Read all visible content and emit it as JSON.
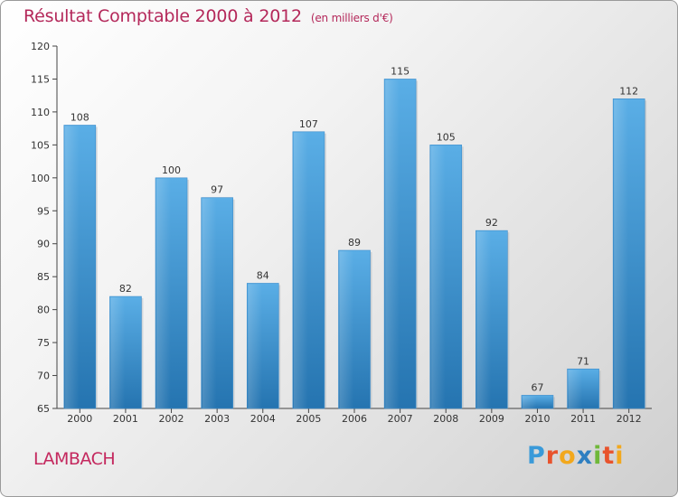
{
  "title": "Résultat Comptable 2000 à 2012",
  "subtitle": "(en milliers d'€)",
  "commune": "LAMBACH",
  "logo": {
    "letters": [
      "P",
      "r",
      "o",
      "x",
      "i",
      "t",
      "i"
    ],
    "colors": [
      "#3a9ad9",
      "#e8532d",
      "#f2a81d",
      "#2e7fc1",
      "#6fb83a",
      "#e8532d",
      "#f2a81d"
    ]
  },
  "colors": {
    "title": "#b4285a",
    "bar_top": "#5aaee6",
    "bar_bottom": "#2574b0"
  },
  "chart_data": {
    "type": "bar",
    "title": "Résultat Comptable 2000 à 2012",
    "subtitle": "(en milliers d'€)",
    "categories": [
      "2000",
      "2001",
      "2002",
      "2003",
      "2004",
      "2005",
      "2006",
      "2007",
      "2008",
      "2009",
      "2010",
      "2011",
      "2012"
    ],
    "values": [
      108,
      82,
      100,
      97,
      84,
      107,
      89,
      115,
      105,
      92,
      67,
      71,
      112
    ],
    "ylim": [
      65,
      120
    ],
    "yticks": [
      65,
      70,
      75,
      80,
      85,
      90,
      95,
      100,
      105,
      110,
      115,
      120
    ],
    "grid": false,
    "xlabel": "",
    "ylabel": ""
  }
}
